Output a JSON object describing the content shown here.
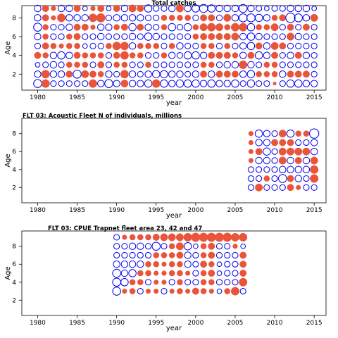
{
  "chart_data": [
    {
      "type": "scatter",
      "title": "Total catches",
      "xlabel": "year",
      "ylabel": "Age",
      "xlim": [
        1978,
        2016.5
      ],
      "ylim": [
        0.3,
        9.3
      ],
      "xticks": [
        1980,
        1985,
        1990,
        1995,
        2000,
        2005,
        2010,
        2015
      ],
      "yticks": [
        2,
        4,
        6,
        8
      ],
      "grid": false,
      "year_start": 1980,
      "year_end": 2015,
      "ages": [
        9,
        8,
        7,
        6,
        5,
        4,
        3,
        2,
        1
      ],
      "bubble_key": {
        "positive": "open blue circle = positive residual",
        "negative": "filled red circle = negative residual",
        "values_are": "residual (relative size, -1 to 1)"
      },
      "residuals": [
        [
          0.4,
          -0.4,
          -0.2,
          0.4,
          0.4,
          -0.4,
          0.2,
          -0.2,
          -0.4,
          0.2,
          -0.4,
          0.4,
          -0.5,
          -0.4,
          0.5,
          0.3,
          0.3,
          0.4,
          -0.5,
          0.4,
          0.5,
          0.6,
          0.5,
          0.4,
          0.4,
          0.4,
          0.6,
          0.4,
          0.3,
          0.2,
          0.3,
          0.3,
          0.4,
          0.4,
          0.4,
          0.2
        ],
        [
          0.4,
          -0.4,
          -0.2,
          -0.6,
          0.4,
          0.4,
          0.4,
          -0.6,
          -0.7,
          0.3,
          0.4,
          0.4,
          0.4,
          0.4,
          0.3,
          0.3,
          -0.3,
          -0.3,
          -0.3,
          -0.3,
          0.3,
          -0.4,
          -0.4,
          0.3,
          -0.5,
          0.4,
          0.6,
          0.6,
          0.5,
          0.4,
          -0.3,
          -0.4,
          0.8,
          0.6,
          0.4,
          -0.5
        ],
        [
          0.6,
          -0.3,
          0.3,
          0.3,
          0.4,
          -0.4,
          -0.4,
          -0.2,
          0.4,
          0.4,
          -0.3,
          -0.4,
          0.5,
          -0.4,
          0.4,
          0.3,
          -0.3,
          0.5,
          0.3,
          0.5,
          -0.3,
          -0.5,
          -0.6,
          -0.5,
          -0.3,
          -0.6,
          -0.6,
          0.5,
          -0.3,
          -0.3,
          -0.5,
          0.3,
          -0.4,
          0.3,
          -0.4,
          0.3
        ],
        [
          0.4,
          -0.3,
          0.3,
          0.3,
          -0.3,
          -0.4,
          0.3,
          0.3,
          0.4,
          0.3,
          0.3,
          0.3,
          0.4,
          0.3,
          0.5,
          0.4,
          0.3,
          0.3,
          0.3,
          0.3,
          -0.3,
          -0.4,
          -0.4,
          -0.4,
          -0.4,
          -0.5,
          0.4,
          0.5,
          0.4,
          0.3,
          0.3,
          0.3,
          -0.5,
          0.4,
          0.3,
          0.3
        ],
        [
          0.3,
          -0.4,
          -0.3,
          -0.2,
          -0.3,
          -0.3,
          0.2,
          0.3,
          0.3,
          -0.3,
          -0.6,
          -0.6,
          0.4,
          -0.3,
          -0.3,
          -0.3,
          0.3,
          -0.3,
          0.4,
          0.3,
          0.3,
          -0.3,
          -0.3,
          0.3,
          -0.3,
          0.3,
          0.4,
          0.5,
          -0.4,
          0.4,
          -0.5,
          -0.4,
          0.3,
          0.3,
          0.3,
          0.3
        ],
        [
          -0.4,
          -0.3,
          0.4,
          0.5,
          0.4,
          -0.4,
          -0.3,
          -0.3,
          -0.3,
          0.3,
          -0.4,
          -0.6,
          -0.3,
          -0.3,
          0.3,
          0.3,
          -0.3,
          0.4,
          0.3,
          0.5,
          0.5,
          0.4,
          -0.4,
          -0.4,
          -0.4,
          -0.3,
          0.4,
          -0.4,
          0.5,
          0.4,
          -0.4,
          0.3,
          0.4,
          -0.4,
          0.4,
          0.3
        ],
        [
          0.2,
          0.3,
          0.4,
          0.3,
          -0.3,
          -0.3,
          -0.3,
          0.3,
          -0.4,
          0.3,
          -0.3,
          -0.3,
          0.3,
          0.3,
          -0.3,
          0.3,
          0.3,
          0.3,
          0.3,
          0.3,
          0.3,
          -0.3,
          -0.3,
          0.3,
          0.4,
          0.4,
          -0.6,
          0.4,
          0.3,
          -0.3,
          -0.3,
          0.3,
          0.3,
          0.3,
          0.3,
          0.3
        ],
        [
          0.4,
          -0.6,
          0.4,
          0.4,
          -0.4,
          0.6,
          -0.5,
          -0.4,
          -0.3,
          0.4,
          0.3,
          -0.6,
          0.4,
          0.3,
          0.4,
          0.5,
          0.5,
          0.4,
          0.4,
          0.3,
          0.4,
          -0.4,
          0.4,
          -0.4,
          -0.4,
          -0.4,
          0.4,
          0.5,
          -0.3,
          -0.3,
          -0.3,
          0.4,
          -0.4,
          -0.4,
          -0.4,
          0.3
        ],
        [
          0.6,
          -0.6,
          0.3,
          0.3,
          0.3,
          0.3,
          0.3,
          -0.6,
          0.4,
          0.6,
          0.4,
          -0.5,
          0.4,
          0.4,
          0.5,
          -0.6,
          0.5,
          0.4,
          0.5,
          0.5,
          0.5,
          0.4,
          0.5,
          0.4,
          0.4,
          0.5,
          0.3,
          0.5,
          0.3,
          0.3,
          -0.1,
          0.3,
          0.5,
          0.5,
          0.4,
          0.4
        ]
      ]
    },
    {
      "type": "scatter",
      "title": "FLT 03: Acoustic Fleet   N of individuals, millions",
      "xlabel": "year",
      "ylabel": "Age",
      "xlim": [
        1978,
        2016.5
      ],
      "ylim": [
        0.3,
        9.7
      ],
      "xticks": [
        1980,
        1985,
        1990,
        1995,
        2000,
        2005,
        2010,
        2015
      ],
      "yticks": [
        2,
        4,
        6,
        8
      ],
      "grid": false,
      "year_start": 2007,
      "year_end": 2015,
      "ages": [
        8,
        7,
        6,
        5,
        4,
        3,
        2
      ],
      "bubble_key": {
        "positive": "open blue circle = positive residual",
        "negative": "filled red circle = negative residual",
        "values_are": "residual (relative size, -1 to 1)"
      },
      "residuals": [
        [
          -0.2,
          0.5,
          0.4,
          0.3,
          -0.5,
          0.5,
          -0.3,
          -0.3,
          0.8
        ],
        [
          -0.2,
          0.4,
          0.4,
          -0.4,
          -0.4,
          -0.4,
          0.3,
          0.3,
          0.4
        ],
        [
          -0.2,
          -0.4,
          0.5,
          0.3,
          -0.5,
          -0.5,
          -0.5,
          -0.5,
          0.4
        ],
        [
          -0.2,
          0.4,
          0.4,
          0.3,
          -0.5,
          0.4,
          -0.4,
          0.4,
          -0.5
        ],
        [
          0.3,
          0.3,
          0.3,
          0.3,
          0.4,
          0.4,
          0.4,
          0.4,
          -0.6
        ],
        [
          0.3,
          0.3,
          -0.3,
          0.3,
          0.6,
          -0.4,
          0.4,
          0.3,
          -0.6
        ],
        [
          0.3,
          -0.5,
          0.3,
          0.3,
          0.3,
          -0.4,
          -0.2,
          0.3,
          0.3
        ]
      ]
    },
    {
      "type": "scatter",
      "title": "FLT 03: CPUE Trapnet fleet area 23, 42 and 47",
      "xlabel": "year",
      "ylabel": "Age",
      "xlim": [
        1978,
        2016.5
      ],
      "ylim": [
        0.3,
        9.7
      ],
      "xticks": [
        1980,
        1985,
        1990,
        1995,
        2000,
        2005,
        2010,
        2015
      ],
      "yticks": [
        2,
        4,
        6,
        8
      ],
      "grid": false,
      "year_start": 1990,
      "year_end": 2006,
      "ages": [
        9,
        8,
        7,
        6,
        5,
        4,
        3
      ],
      "bubble_key": {
        "positive": "open blue circle = positive residual",
        "negative": "filled red circle = negative residual",
        "values_are": "residual (relative size, -1 to 1)"
      },
      "residuals": [
        [
          0.3,
          -0.2,
          -0.3,
          -0.3,
          -0.3,
          -0.4,
          -0.5,
          -0.5,
          -0.5,
          -0.6,
          -0.7,
          -0.7,
          -0.7,
          -0.7,
          -0.7,
          -0.6,
          -0.6
        ],
        [
          0.3,
          0.3,
          0.4,
          0.4,
          0.3,
          0.6,
          0.3,
          -0.3,
          -0.5,
          0.5,
          0.2,
          -0.3,
          -0.4,
          0.3,
          0.3,
          -0.2,
          0.2
        ],
        [
          0.3,
          0.3,
          0.3,
          0.3,
          0.3,
          -0.3,
          -0.3,
          -0.3,
          -0.4,
          0.4,
          0.3,
          -0.3,
          -0.4,
          0.3,
          0.3,
          0.3,
          -0.4
        ],
        [
          0.4,
          0.4,
          0.4,
          0.4,
          -0.3,
          -0.3,
          -0.2,
          -0.3,
          -0.3,
          0.4,
          0.3,
          -0.4,
          -0.3,
          0.2,
          0.3,
          0.3,
          -0.4
        ],
        [
          0.6,
          0.4,
          0.5,
          -0.3,
          -0.3,
          -0.2,
          -0.2,
          -0.3,
          -0.3,
          -0.2,
          0.3,
          -0.3,
          -0.4,
          0.2,
          0.3,
          0.3,
          -0.4
        ],
        [
          0.6,
          0.5,
          -0.3,
          -0.3,
          0.3,
          -0.2,
          -0.2,
          0.3,
          -0.3,
          0.3,
          0.3,
          -0.3,
          -0.3,
          0.3,
          0.3,
          0.3,
          -0.6
        ],
        [
          0.6,
          -0.2,
          -0.3,
          0.3,
          -0.2,
          -0.2,
          0.3,
          -0.2,
          -0.3,
          -0.2,
          -0.4,
          -0.3,
          -0.2,
          0.2,
          -0.3,
          -0.6,
          0.3
        ]
      ]
    }
  ],
  "colors": {
    "positive": "#0000ee",
    "negative": "#e8553b",
    "axis": "#000000",
    "background": "#ffffff"
  }
}
